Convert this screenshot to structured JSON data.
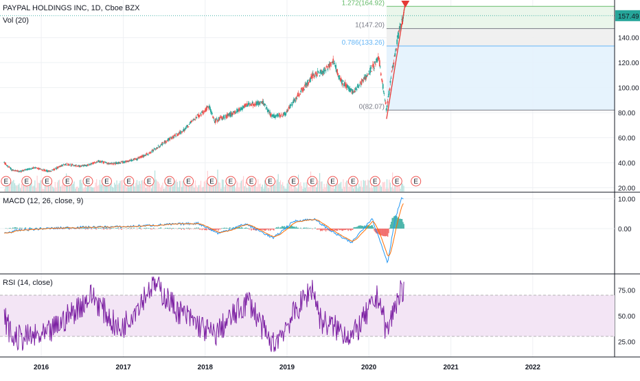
{
  "header": {
    "symbol_title": "PAYPAL HOLDINGS INC, 1D, Cboe BZX",
    "volume_label": "Vol (20)"
  },
  "price_badge": {
    "value": "157.49",
    "color": "#26a69a"
  },
  "earnings_marker_label": "E",
  "colors": {
    "up": "#26a69a",
    "down": "#ef5350",
    "macd_line": "#2196f3",
    "signal_line": "#ff6d00",
    "rsi_line": "#7b1fa2",
    "rsi_band": "#f3e5f5",
    "fib_green": "#e8f5e9",
    "fib_grey": "#eeeeee",
    "fib_blue": "#e3f2fd",
    "trend_line": "#e53935"
  },
  "chart_data": [
    {
      "type": "candlestick",
      "title": "PAYPAL HOLDINGS INC, 1D, Cboe BZX",
      "y_ticks": [
        20,
        40,
        60,
        80,
        100,
        120,
        140
      ],
      "ylim": [
        17,
        170
      ],
      "x_ticks": [
        "2016",
        "2017",
        "2018",
        "2019",
        "2020",
        "2021",
        "2022"
      ],
      "xlim": [
        "2015-07-01",
        "2023-01-01"
      ],
      "grid": true,
      "price_path": [
        [
          "2015-07-20",
          40
        ],
        [
          "2015-08-25",
          34
        ],
        [
          "2015-10-01",
          33
        ],
        [
          "2015-12-01",
          36
        ],
        [
          "2016-02-10",
          33
        ],
        [
          "2016-04-15",
          39
        ],
        [
          "2016-07-01",
          37
        ],
        [
          "2016-09-15",
          41
        ],
        [
          "2016-11-15",
          39
        ],
        [
          "2017-01-15",
          41
        ],
        [
          "2017-03-01",
          43
        ],
        [
          "2017-05-01",
          48
        ],
        [
          "2017-07-15",
          58
        ],
        [
          "2017-09-15",
          64
        ],
        [
          "2017-11-15",
          75
        ],
        [
          "2018-01-20",
          85
        ],
        [
          "2018-02-10",
          73
        ],
        [
          "2018-05-01",
          79
        ],
        [
          "2018-07-15",
          87
        ],
        [
          "2018-09-15",
          88
        ],
        [
          "2018-10-25",
          77
        ],
        [
          "2018-12-24",
          79
        ],
        [
          "2019-02-15",
          93
        ],
        [
          "2019-04-30",
          110
        ],
        [
          "2019-06-15",
          113
        ],
        [
          "2019-07-25",
          121
        ],
        [
          "2019-09-01",
          105
        ],
        [
          "2019-10-25",
          96
        ],
        [
          "2019-12-15",
          108
        ],
        [
          "2020-02-15",
          123
        ],
        [
          "2020-03-20",
          82.07
        ],
        [
          "2020-04-15",
          115
        ],
        [
          "2020-05-15",
          145
        ],
        [
          "2020-06-05",
          157.49
        ]
      ],
      "fib_levels": [
        {
          "label": "1.272(164.92)",
          "value": 164.92
        },
        {
          "label": "1(147.20)",
          "value": 147.2
        },
        {
          "label": "0.786(133.26)",
          "value": 133.26
        },
        {
          "label": "0(82.07)",
          "value": 82.07
        }
      ],
      "earnings_dates": [
        "2015-07-28",
        "2015-10-28",
        "2016-01-27",
        "2016-04-27",
        "2016-07-27",
        "2016-10-19",
        "2017-01-26",
        "2017-04-26",
        "2017-07-26",
        "2017-10-19",
        "2018-01-31",
        "2018-04-25",
        "2018-07-26",
        "2018-10-18",
        "2019-01-31",
        "2019-04-24",
        "2019-07-24",
        "2019-10-23",
        "2020-01-29",
        "2020-05-06",
        "2020-07-29"
      ]
    },
    {
      "type": "line",
      "title": "MACD (12, 26, close, 9)",
      "y_ticks": [
        0.0,
        10.0
      ],
      "y_tick_labels": [
        "0.00",
        "10.00"
      ],
      "ylim": [
        -15,
        12
      ],
      "series": [
        {
          "name": "",
          "values": [
            [
              "2015-07-20",
              -1.5
            ],
            [
              "2015-10-01",
              -0.5
            ],
            [
              "2016-01-15",
              0
            ],
            [
              "2016-06-01",
              0.4
            ],
            [
              "2017-01-01",
              0.6
            ],
            [
              "2017-06-01",
              1.2
            ],
            [
              "2017-12-01",
              1.8
            ],
            [
              "2018-03-01",
              -1.6
            ],
            [
              "2018-07-01",
              1.6
            ],
            [
              "2018-11-01",
              -3.2
            ],
            [
              "2019-02-01",
              2.5
            ],
            [
              "2019-05-01",
              3.2
            ],
            [
              "2019-08-01",
              -1.5
            ],
            [
              "2019-10-15",
              -4.8
            ],
            [
              "2020-01-15",
              3.5
            ],
            [
              "2020-03-25",
              -11.5
            ],
            [
              "2020-04-25",
              2.5
            ],
            [
              "2020-05-25",
              10.2
            ],
            [
              "2020-06-05",
              9.5
            ]
          ]
        }
      ]
    },
    {
      "type": "line",
      "title": "RSI (14, close)",
      "y_ticks": [
        25,
        50,
        75
      ],
      "y_tick_labels": [
        "25.00",
        "50.00",
        "75.00"
      ],
      "ylim": [
        10,
        90
      ],
      "band": [
        30,
        70
      ],
      "series": [
        {
          "name": "",
          "values": [
            [
              "2015-07-20",
              50
            ],
            [
              "2015-08-25",
              28
            ],
            [
              "2016-01-20",
              30
            ],
            [
              "2016-08-15",
              70
            ],
            [
              "2016-12-15",
              35
            ],
            [
              "2017-05-15",
              82
            ],
            [
              "2017-09-01",
              55
            ],
            [
              "2018-02-08",
              31
            ],
            [
              "2018-07-15",
              65
            ],
            [
              "2018-10-25",
              20
            ],
            [
              "2019-04-25",
              78
            ],
            [
              "2019-06-01",
              45
            ],
            [
              "2019-10-22",
              30
            ],
            [
              "2020-02-15",
              70
            ],
            [
              "2020-03-20",
              33
            ],
            [
              "2020-05-20",
              75
            ],
            [
              "2020-06-05",
              70
            ]
          ]
        }
      ]
    }
  ]
}
